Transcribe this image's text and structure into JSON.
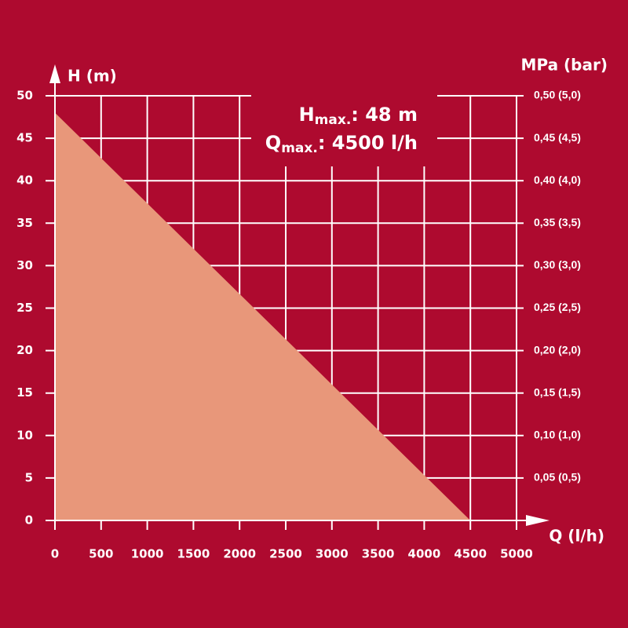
{
  "chart_data": {
    "type": "area",
    "y_label": "H (m)",
    "y2_label": "MPa (bar)",
    "x_label": "Q (l/h)",
    "annotations": [
      {
        "text": "H",
        "sub": "max.",
        "rest": ": 48 m"
      },
      {
        "text": "Q",
        "sub": "max.",
        "rest": ": 4500 l/h"
      }
    ],
    "x": [
      0,
      4500
    ],
    "series": [
      {
        "name": null,
        "color": "#e8977a",
        "values": [
          48,
          0
        ]
      }
    ],
    "xlim": [
      0,
      5000
    ],
    "xticks": [
      0,
      500,
      1000,
      1500,
      2000,
      2500,
      3000,
      3500,
      4000,
      4500,
      5000
    ],
    "ylim": [
      0,
      50
    ],
    "yticks": [
      0,
      5,
      10,
      15,
      20,
      25,
      30,
      35,
      40,
      45,
      50
    ],
    "y2lim": [
      0,
      0.5
    ],
    "y2ticks": [
      {
        "value": 0.05,
        "label": "0,05 (0,5)"
      },
      {
        "value": 0.1,
        "label": "0,10 (1,0)"
      },
      {
        "value": 0.15,
        "label": "0,15 (1,5)"
      },
      {
        "value": 0.2,
        "label": "0,20 (2,0)"
      },
      {
        "value": 0.25,
        "label": "0,25 (2,5)"
      },
      {
        "value": 0.3,
        "label": "0,30 (3,0)"
      },
      {
        "value": 0.35,
        "label": "0,35 (3,5)"
      },
      {
        "value": 0.4,
        "label": "0,40 (4,0)"
      },
      {
        "value": 0.45,
        "label": "0,45 (4,5)"
      },
      {
        "value": 0.5,
        "label": "0,50 (5,0)"
      }
    ],
    "grid": true,
    "background": "#ae0a2f"
  }
}
